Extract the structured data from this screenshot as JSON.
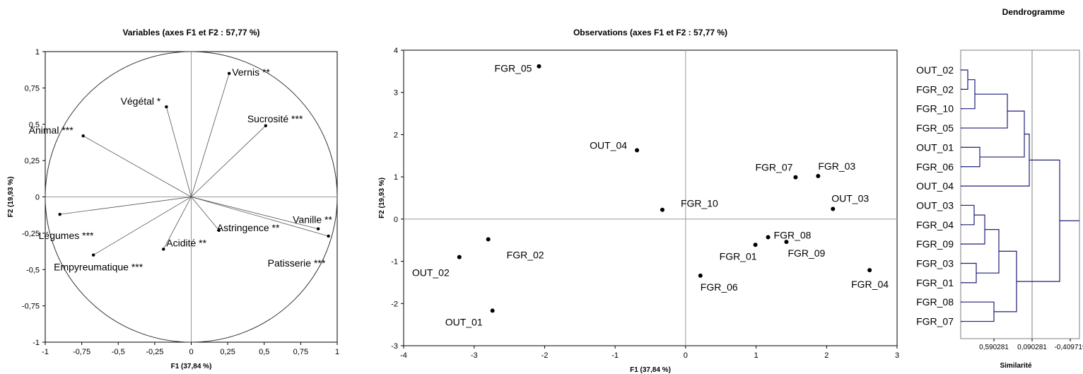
{
  "chart_data": [
    {
      "type": "scatter",
      "title": "Variables (axes F1 et F2 : 57,77 %)",
      "xlabel": "F1 (37,84 %)",
      "ylabel": "F2 (19,93 %)",
      "xlim": [
        -1,
        1
      ],
      "ylim": [
        -1,
        1
      ],
      "xticks": [
        "-1",
        "-0,75",
        "-0,5",
        "-0,25",
        "0",
        "0,25",
        "0,5",
        "0,75",
        "1"
      ],
      "yticks": [
        "-1",
        "-0,75",
        "-0,5",
        "-0,25",
        "0",
        "0,25",
        "0,5",
        "0,75",
        "1"
      ],
      "unit_circle": true,
      "points": [
        {
          "name": "Vernis **",
          "x": 0.26,
          "y": 0.85
        },
        {
          "name": "Végétal *",
          "x": -0.17,
          "y": 0.62
        },
        {
          "name": "Sucrosité ***",
          "x": 0.51,
          "y": 0.49
        },
        {
          "name": "Animal ***",
          "x": -0.74,
          "y": 0.42
        },
        {
          "name": "Légumes ***",
          "x": -0.9,
          "y": -0.12
        },
        {
          "name": "Vanille **",
          "x": 0.87,
          "y": -0.22
        },
        {
          "name": "Patisserie ***",
          "x": 0.94,
          "y": -0.27
        },
        {
          "name": "Astringence **",
          "x": 0.19,
          "y": -0.23
        },
        {
          "name": "Acidité **",
          "x": -0.19,
          "y": -0.36
        },
        {
          "name": "Empyreumatique ***",
          "x": -0.67,
          "y": -0.4
        }
      ]
    },
    {
      "type": "scatter",
      "title": "Observations (axes F1 et F2 : 57,77 %)",
      "xlabel": "F1 (37,84 %)",
      "ylabel": "F2 (19,93 %)",
      "xlim": [
        -4,
        3
      ],
      "ylim": [
        -3,
        4
      ],
      "xticks": [
        "-4",
        "-3",
        "-2",
        "-1",
        "0",
        "1",
        "2",
        "3"
      ],
      "yticks": [
        "-3",
        "-2",
        "-1",
        "0",
        "1",
        "2",
        "3",
        "4"
      ],
      "points": [
        {
          "name": "FGR_05",
          "x": -2.08,
          "y": 3.62
        },
        {
          "name": "OUT_04",
          "x": -0.69,
          "y": 1.63
        },
        {
          "name": "FGR_07",
          "x": 1.56,
          "y": 0.99
        },
        {
          "name": "FGR_03",
          "x": 1.88,
          "y": 1.02
        },
        {
          "name": "FGR_10",
          "x": -0.33,
          "y": 0.22
        },
        {
          "name": "OUT_03",
          "x": 2.09,
          "y": 0.24
        },
        {
          "name": "FGR_08",
          "x": 1.17,
          "y": -0.43
        },
        {
          "name": "FGR_01",
          "x": 0.99,
          "y": -0.61
        },
        {
          "name": "FGR_09",
          "x": 1.43,
          "y": -0.54
        },
        {
          "name": "FGR_02",
          "x": -2.8,
          "y": -0.48
        },
        {
          "name": "OUT_02",
          "x": -3.21,
          "y": -0.9
        },
        {
          "name": "FGR_06",
          "x": 0.21,
          "y": -1.34
        },
        {
          "name": "FGR_04",
          "x": 2.61,
          "y": -1.21
        },
        {
          "name": "OUT_01",
          "x": -2.74,
          "y": -2.17
        }
      ]
    },
    {
      "type": "dendrogram",
      "title": "Dendrogramme",
      "xlabel": "Similarité",
      "xticks": [
        "0,590281",
        "0,090281",
        "-0,409719"
      ],
      "leaves": [
        "OUT_02",
        "FGR_02",
        "FGR_10",
        "FGR_05",
        "OUT_01",
        "FGR_06",
        "OUT_04",
        "OUT_03",
        "FGR_04",
        "FGR_09",
        "FGR_03",
        "FGR_01",
        "FGR_08",
        "FGR_07"
      ],
      "colors": {
        "branch": "#1f1f7a",
        "frame": "#7f7f7f"
      }
    }
  ]
}
